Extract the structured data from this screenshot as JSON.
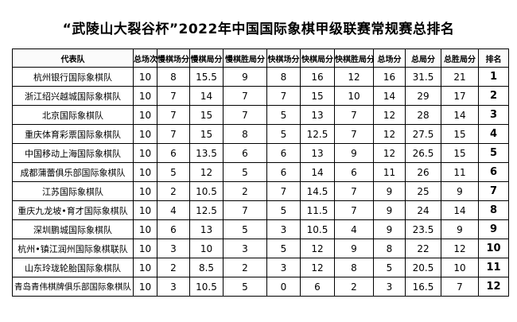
{
  "title": "“武陵山大裂谷杯”2022年中国国际象棋甲级联赛常规赛总排名",
  "table": {
    "headers": [
      "代表队",
      "总场次",
      "慢棋场分",
      "慢棋局分",
      "慢棋胜局分",
      "快棋场分",
      "快棋局分",
      "快棋胜局分",
      "总场分",
      "总局分",
      "总胜局分",
      "排名"
    ],
    "rows": [
      [
        "杭州银行国际象棋队",
        "10",
        "8",
        "15.5",
        "9",
        "8",
        "16",
        "12",
        "16",
        "31.5",
        "21",
        "1"
      ],
      [
        "浙江绍兴越城国际象棋队",
        "10",
        "7",
        "14",
        "7",
        "7",
        "15",
        "10",
        "14",
        "29",
        "17",
        "2"
      ],
      [
        "北京国际象棋队",
        "10",
        "7",
        "15",
        "7",
        "5",
        "13",
        "7",
        "12",
        "28",
        "14",
        "3"
      ],
      [
        "重庆体育彩票国际象棋队",
        "10",
        "7",
        "15",
        "8",
        "5",
        "12.5",
        "7",
        "12",
        "27.5",
        "15",
        "4"
      ],
      [
        "中国移动上海国际象棋队",
        "10",
        "6",
        "13.5",
        "6",
        "6",
        "13",
        "9",
        "12",
        "26.5",
        "15",
        "5"
      ],
      [
        "成都蒲蕾俱乐部国际象棋队",
        "10",
        "5",
        "12",
        "5",
        "6",
        "14",
        "6",
        "11",
        "26",
        "11",
        "6"
      ],
      [
        "江苏国际象棋队",
        "10",
        "2",
        "10.5",
        "2",
        "7",
        "14.5",
        "7",
        "9",
        "25",
        "9",
        "7"
      ],
      [
        "重庆九龙坡•育才国际象棋队",
        "10",
        "4",
        "12.5",
        "7",
        "5",
        "11.5",
        "7",
        "9",
        "24",
        "14",
        "8"
      ],
      [
        "深圳鹏城国际象棋队",
        "10",
        "6",
        "13",
        "5",
        "3",
        "10.5",
        "4",
        "9",
        "23.5",
        "9",
        "9"
      ],
      [
        "杭州•镇江润州国际象棋联队",
        "10",
        "3",
        "10",
        "3",
        "5",
        "12",
        "9",
        "8",
        "22",
        "12",
        "10"
      ],
      [
        "山东玲珑轮胎国际象棋队",
        "10",
        "2",
        "8.5",
        "2",
        "3",
        "12",
        "8",
        "5",
        "20.5",
        "10",
        "11"
      ],
      [
        "青岛青伟棋牌俱乐部国际象棋队",
        "10",
        "3",
        "10.5",
        "5",
        "0",
        "6",
        "2",
        "3",
        "16.5",
        "7",
        "12"
      ]
    ]
  }
}
